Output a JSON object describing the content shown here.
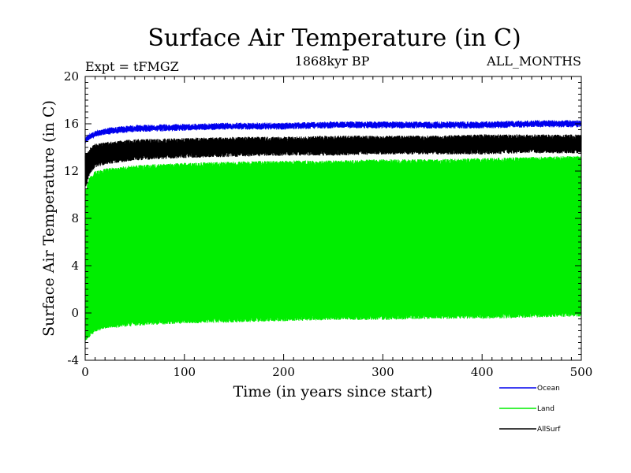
{
  "chart_data": {
    "type": "line",
    "title": "Surface Air Temperature (in C)",
    "expt_label": "Expt = tFMGZ",
    "period_label": "1868kyr BP",
    "months_label": "ALL_MONTHS",
    "xlabel": "Time (in years since start)",
    "ylabel": "Surface Air Temperature (in C)",
    "xlim": [
      0,
      500
    ],
    "ylim": [
      -4,
      20
    ],
    "x_ticks": [
      0,
      100,
      200,
      300,
      400,
      500
    ],
    "y_ticks": [
      -4,
      0,
      4,
      8,
      12,
      16,
      20
    ],
    "x_tick_labels": [
      "0",
      "100",
      "200",
      "300",
      "400",
      "500"
    ],
    "y_tick_labels": [
      "-4",
      "0",
      "4",
      "8",
      "12",
      "16",
      "20"
    ],
    "legend_position": "bottom-right, outside plot",
    "series": [
      {
        "name": "Land",
        "color": "#00ee00",
        "description": "monthly values, seasonal range",
        "envelope_x": [
          0,
          5,
          10,
          25,
          50,
          100,
          150,
          200,
          250,
          300,
          350,
          400,
          450,
          500
        ],
        "envelope_max": [
          10.5,
          11.6,
          12.0,
          12.3,
          12.5,
          12.7,
          12.8,
          12.9,
          12.9,
          13.0,
          13.0,
          13.1,
          13.2,
          13.3
        ],
        "envelope_min": [
          -2.4,
          -2.0,
          -1.6,
          -1.3,
          -1.1,
          -0.9,
          -0.8,
          -0.7,
          -0.6,
          -0.6,
          -0.5,
          -0.5,
          -0.4,
          -0.3
        ]
      },
      {
        "name": "AllSurf",
        "color": "#000000",
        "description": "monthly values, seasonal range",
        "envelope_x": [
          0,
          5,
          10,
          25,
          50,
          100,
          150,
          200,
          250,
          300,
          350,
          400,
          450,
          500
        ],
        "envelope_max": [
          13.5,
          14.0,
          14.3,
          14.5,
          14.7,
          14.8,
          14.9,
          14.9,
          15.0,
          15.0,
          15.0,
          15.1,
          15.1,
          15.1
        ],
        "envelope_min": [
          10.5,
          11.8,
          12.3,
          12.6,
          12.9,
          13.1,
          13.2,
          13.3,
          13.3,
          13.4,
          13.4,
          13.4,
          13.5,
          13.5
        ]
      },
      {
        "name": "Ocean",
        "color": "#0000ee",
        "description": "monthly values, seasonal range",
        "envelope_x": [
          0,
          5,
          10,
          25,
          50,
          100,
          150,
          200,
          250,
          300,
          350,
          400,
          450,
          500
        ],
        "envelope_max": [
          14.9,
          15.2,
          15.4,
          15.6,
          15.8,
          15.9,
          16.0,
          16.0,
          16.1,
          16.1,
          16.1,
          16.1,
          16.2,
          16.2
        ],
        "envelope_min": [
          14.3,
          14.7,
          14.9,
          15.2,
          15.4,
          15.5,
          15.6,
          15.6,
          15.7,
          15.7,
          15.7,
          15.7,
          15.8,
          15.8
        ]
      }
    ]
  },
  "legend": {
    "items": [
      {
        "name": "Ocean",
        "color": "#0000ee"
      },
      {
        "name": "Land",
        "color": "#00ee00"
      },
      {
        "name": "AllSurf",
        "color": "#000000"
      }
    ]
  }
}
